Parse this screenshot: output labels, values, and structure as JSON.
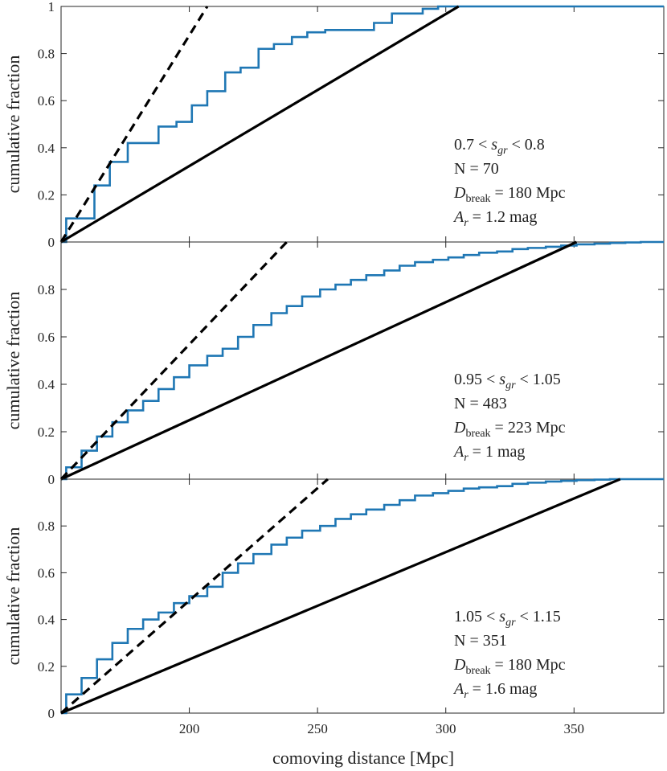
{
  "chart_data": [
    {
      "type": "step",
      "xlabel": "comoving distance [Mpc]",
      "ylabel": "cumulative fraction",
      "xlim": [
        150,
        385
      ],
      "ylim": [
        0,
        1
      ],
      "ytick_labels": [
        "0",
        "0.2",
        "0.4",
        "0.6",
        "0.8",
        "1"
      ],
      "yticks": [
        0,
        0.2,
        0.4,
        0.6,
        0.8,
        1
      ],
      "annotation": {
        "line1": "0.7 < s_gr < 0.8",
        "line1_lhs": "0.7 <",
        "line1_var": "s",
        "line1_sub": "gr",
        "line1_rhs": "< 0.8",
        "line2": "N = 70",
        "line3": "D_break = 180 Mpc",
        "line3_var": "D",
        "line3_sub": "break",
        "line3_rhs": "= 180 Mpc",
        "line4": "A_r = 1.2 mag",
        "line4_var": "A",
        "line4_sub": "r",
        "line4_rhs": "= 1.2 mag"
      },
      "series": [
        {
          "name": "empirical CDF",
          "style": "step",
          "color": "#1f77b4",
          "x": [
            150,
            152,
            157,
            163,
            169,
            176,
            182,
            188,
            195,
            201,
            207,
            214,
            220,
            227,
            233,
            240,
            246,
            253,
            260,
            272,
            279,
            291,
            297,
            303,
            385
          ],
          "y": [
            0,
            0.1,
            0.1,
            0.24,
            0.34,
            0.42,
            0.42,
            0.49,
            0.51,
            0.58,
            0.64,
            0.72,
            0.74,
            0.82,
            0.84,
            0.87,
            0.89,
            0.9,
            0.9,
            0.93,
            0.97,
            0.99,
            1.0,
            1.0,
            1.0
          ]
        },
        {
          "name": "dashed reference",
          "style": "dashed",
          "color": "#000000",
          "x": [
            150,
            207
          ],
          "y": [
            0,
            1
          ]
        },
        {
          "name": "solid reference",
          "style": "solid",
          "color": "#000000",
          "x": [
            150,
            305
          ],
          "y": [
            0,
            1
          ]
        }
      ]
    },
    {
      "type": "step",
      "xlabel": "comoving distance [Mpc]",
      "ylabel": "cumulative fraction",
      "xlim": [
        150,
        385
      ],
      "ylim": [
        0,
        1
      ],
      "ytick_labels": [
        "0",
        "0.2",
        "0.4",
        "0.6",
        "0.8"
      ],
      "yticks": [
        0,
        0.2,
        0.4,
        0.6,
        0.8
      ],
      "annotation": {
        "line1": "0.95 < s_gr < 1.05",
        "line1_lhs": "0.95 <",
        "line1_var": "s",
        "line1_sub": "gr",
        "line1_rhs": "< 1.05",
        "line2": "N = 483",
        "line3": "D_break = 223 Mpc",
        "line3_var": "D",
        "line3_sub": "break",
        "line3_rhs": "= 223 Mpc",
        "line4": "A_r = 1 mag",
        "line4_var": "A",
        "line4_sub": "r",
        "line4_rhs": "= 1 mag"
      },
      "series": [
        {
          "name": "empirical CDF",
          "style": "step",
          "color": "#1f77b4",
          "x": [
            150,
            152,
            158,
            164,
            170,
            176,
            182,
            188,
            194,
            200,
            207,
            213,
            219,
            225,
            232,
            238,
            244,
            251,
            257,
            263,
            269,
            276,
            282,
            288,
            295,
            301,
            307,
            313,
            320,
            326,
            332,
            339,
            345,
            351,
            358,
            364,
            370,
            376,
            385
          ],
          "y": [
            0,
            0.05,
            0.12,
            0.18,
            0.24,
            0.29,
            0.33,
            0.38,
            0.43,
            0.48,
            0.52,
            0.55,
            0.6,
            0.65,
            0.7,
            0.73,
            0.77,
            0.8,
            0.82,
            0.84,
            0.86,
            0.88,
            0.9,
            0.915,
            0.925,
            0.935,
            0.945,
            0.955,
            0.96,
            0.97,
            0.975,
            0.98,
            0.985,
            0.99,
            0.993,
            0.996,
            0.998,
            1.0,
            1.0
          ]
        },
        {
          "name": "dashed reference",
          "style": "dashed",
          "color": "#000000",
          "x": [
            150,
            238
          ],
          "y": [
            0,
            1
          ]
        },
        {
          "name": "solid reference",
          "style": "solid",
          "color": "#000000",
          "x": [
            150,
            351
          ],
          "y": [
            0,
            1
          ]
        }
      ]
    },
    {
      "type": "step",
      "xlabel": "comoving distance [Mpc]",
      "ylabel": "cumulative fraction",
      "xlim": [
        150,
        385
      ],
      "ylim": [
        0,
        1
      ],
      "ytick_labels": [
        "0",
        "0.2",
        "0.4",
        "0.6",
        "0.8"
      ],
      "yticks": [
        0,
        0.2,
        0.4,
        0.6,
        0.8
      ],
      "xtick_labels": [
        "200",
        "250",
        "300",
        "350"
      ],
      "xticks": [
        200,
        250,
        300,
        350
      ],
      "annotation": {
        "line1": "1.05 < s_gr < 1.15",
        "line1_lhs": "1.05 <",
        "line1_var": "s",
        "line1_sub": "gr",
        "line1_rhs": "< 1.15",
        "line2": "N = 351",
        "line3": "D_break = 180 Mpc",
        "line3_var": "D",
        "line3_sub": "break",
        "line3_rhs": "= 180 Mpc",
        "line4": "A_r = 1.6 mag",
        "line4_var": "A",
        "line4_sub": "r",
        "line4_rhs": "= 1.6 mag"
      },
      "series": [
        {
          "name": "empirical CDF",
          "style": "step",
          "color": "#1f77b4",
          "x": [
            150,
            152,
            158,
            164,
            170,
            176,
            182,
            188,
            194,
            200,
            207,
            213,
            219,
            225,
            232,
            238,
            244,
            251,
            257,
            263,
            269,
            276,
            282,
            288,
            295,
            301,
            307,
            313,
            320,
            326,
            332,
            339,
            345,
            351,
            358,
            364,
            370,
            376,
            385
          ],
          "y": [
            0,
            0.08,
            0.15,
            0.23,
            0.3,
            0.36,
            0.4,
            0.43,
            0.47,
            0.5,
            0.54,
            0.6,
            0.64,
            0.68,
            0.72,
            0.75,
            0.78,
            0.8,
            0.83,
            0.85,
            0.87,
            0.89,
            0.91,
            0.93,
            0.94,
            0.95,
            0.96,
            0.965,
            0.97,
            0.98,
            0.985,
            0.99,
            0.993,
            0.996,
            0.998,
            1.0,
            1.0,
            1.0,
            1.0
          ]
        },
        {
          "name": "dashed reference",
          "style": "dashed",
          "color": "#000000",
          "x": [
            150,
            254
          ],
          "y": [
            0,
            1
          ]
        },
        {
          "name": "solid reference",
          "style": "solid",
          "color": "#000000",
          "x": [
            150,
            368
          ],
          "y": [
            0,
            1
          ]
        }
      ]
    }
  ]
}
